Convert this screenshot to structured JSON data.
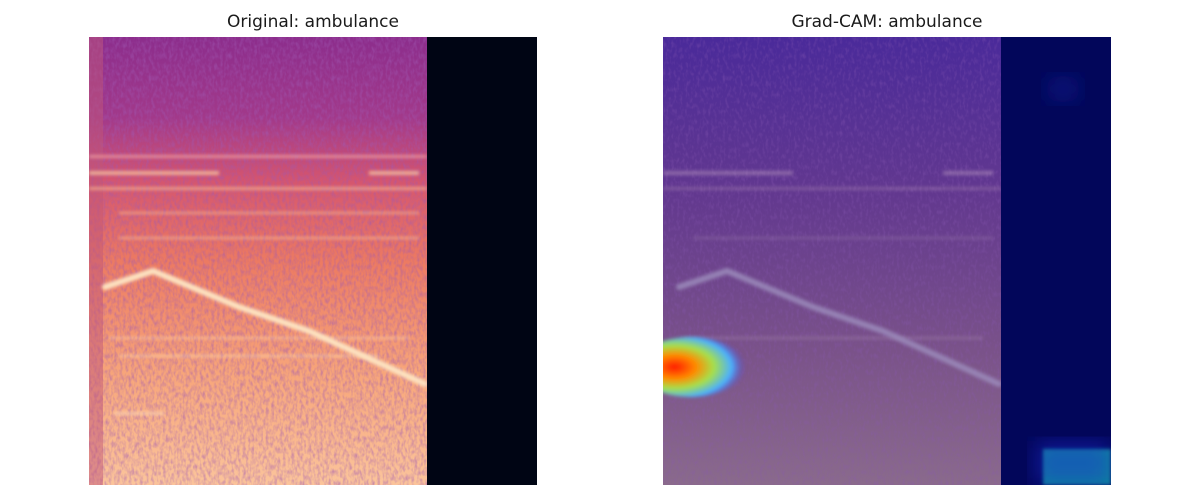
{
  "panels": [
    {
      "title": "Original: ambulance"
    },
    {
      "title": "Grad-CAM: ambulance"
    }
  ]
}
